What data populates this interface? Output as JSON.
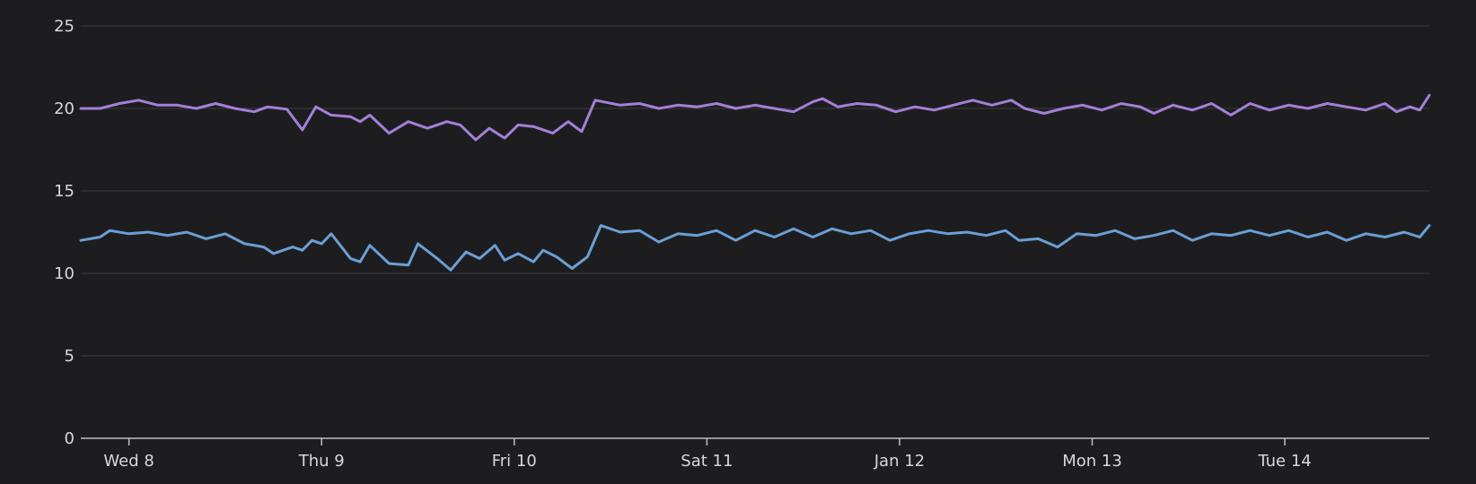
{
  "chart_data": {
    "type": "line",
    "title": "",
    "xlabel": "",
    "ylabel": "",
    "ylim": [
      0,
      25
    ],
    "yticks": [
      0,
      5,
      10,
      15,
      20,
      25
    ],
    "xlim": [
      -0.25,
      6.75
    ],
    "xticks": [
      {
        "value": 0,
        "label": "Wed 8"
      },
      {
        "value": 1,
        "label": "Thu 9"
      },
      {
        "value": 2,
        "label": "Fri 10"
      },
      {
        "value": 3,
        "label": "Sat 11"
      },
      {
        "value": 4,
        "label": "Jan 12"
      },
      {
        "value": 5,
        "label": "Mon 13"
      },
      {
        "value": 6,
        "label": "Tue 14"
      }
    ],
    "grid": true,
    "legend": "none",
    "series": [
      {
        "color": "#a57fd8",
        "points": [
          [
            -0.25,
            20.0
          ],
          [
            -0.15,
            20.0
          ],
          [
            -0.05,
            20.3
          ],
          [
            0.05,
            20.5
          ],
          [
            0.15,
            20.2
          ],
          [
            0.25,
            20.2
          ],
          [
            0.35,
            20.0
          ],
          [
            0.45,
            20.3
          ],
          [
            0.55,
            20.0
          ],
          [
            0.65,
            19.8
          ],
          [
            0.72,
            20.1
          ],
          [
            0.82,
            19.95
          ],
          [
            0.9,
            18.7
          ],
          [
            0.97,
            20.1
          ],
          [
            1.05,
            19.6
          ],
          [
            1.15,
            19.5
          ],
          [
            1.2,
            19.2
          ],
          [
            1.25,
            19.6
          ],
          [
            1.35,
            18.5
          ],
          [
            1.45,
            19.2
          ],
          [
            1.55,
            18.8
          ],
          [
            1.65,
            19.2
          ],
          [
            1.72,
            19.0
          ],
          [
            1.8,
            18.1
          ],
          [
            1.87,
            18.8
          ],
          [
            1.95,
            18.2
          ],
          [
            2.02,
            19.0
          ],
          [
            2.1,
            18.9
          ],
          [
            2.2,
            18.5
          ],
          [
            2.28,
            19.2
          ],
          [
            2.35,
            18.6
          ],
          [
            2.42,
            20.5
          ],
          [
            2.55,
            20.2
          ],
          [
            2.65,
            20.3
          ],
          [
            2.75,
            20.0
          ],
          [
            2.85,
            20.2
          ],
          [
            2.95,
            20.1
          ],
          [
            3.05,
            20.3
          ],
          [
            3.15,
            20.0
          ],
          [
            3.25,
            20.2
          ],
          [
            3.35,
            20.0
          ],
          [
            3.45,
            19.8
          ],
          [
            3.55,
            20.4
          ],
          [
            3.6,
            20.6
          ],
          [
            3.68,
            20.1
          ],
          [
            3.78,
            20.3
          ],
          [
            3.88,
            20.2
          ],
          [
            3.98,
            19.8
          ],
          [
            4.08,
            20.1
          ],
          [
            4.18,
            19.9
          ],
          [
            4.28,
            20.2
          ],
          [
            4.38,
            20.5
          ],
          [
            4.48,
            20.2
          ],
          [
            4.58,
            20.5
          ],
          [
            4.65,
            20.0
          ],
          [
            4.75,
            19.7
          ],
          [
            4.85,
            20.0
          ],
          [
            4.95,
            20.2
          ],
          [
            5.05,
            19.9
          ],
          [
            5.15,
            20.3
          ],
          [
            5.25,
            20.1
          ],
          [
            5.32,
            19.7
          ],
          [
            5.42,
            20.2
          ],
          [
            5.52,
            19.9
          ],
          [
            5.62,
            20.3
          ],
          [
            5.72,
            19.6
          ],
          [
            5.82,
            20.3
          ],
          [
            5.92,
            19.9
          ],
          [
            6.02,
            20.2
          ],
          [
            6.12,
            20.0
          ],
          [
            6.22,
            20.3
          ],
          [
            6.32,
            20.1
          ],
          [
            6.42,
            19.9
          ],
          [
            6.52,
            20.3
          ],
          [
            6.58,
            19.8
          ],
          [
            6.65,
            20.1
          ],
          [
            6.7,
            19.9
          ],
          [
            6.75,
            20.8
          ]
        ]
      },
      {
        "color": "#6b9fd4",
        "points": [
          [
            -0.25,
            12.0
          ],
          [
            -0.15,
            12.2
          ],
          [
            -0.1,
            12.6
          ],
          [
            0.0,
            12.4
          ],
          [
            0.1,
            12.5
          ],
          [
            0.2,
            12.3
          ],
          [
            0.3,
            12.5
          ],
          [
            0.4,
            12.1
          ],
          [
            0.5,
            12.4
          ],
          [
            0.6,
            11.8
          ],
          [
            0.7,
            11.6
          ],
          [
            0.75,
            11.2
          ],
          [
            0.85,
            11.6
          ],
          [
            0.9,
            11.4
          ],
          [
            0.95,
            12.0
          ],
          [
            1.0,
            11.8
          ],
          [
            1.05,
            12.4
          ],
          [
            1.15,
            10.9
          ],
          [
            1.2,
            10.7
          ],
          [
            1.25,
            11.7
          ],
          [
            1.35,
            10.6
          ],
          [
            1.45,
            10.5
          ],
          [
            1.5,
            11.8
          ],
          [
            1.6,
            10.9
          ],
          [
            1.67,
            10.2
          ],
          [
            1.75,
            11.3
          ],
          [
            1.82,
            10.9
          ],
          [
            1.9,
            11.7
          ],
          [
            1.95,
            10.8
          ],
          [
            2.02,
            11.2
          ],
          [
            2.1,
            10.7
          ],
          [
            2.15,
            11.4
          ],
          [
            2.22,
            11.0
          ],
          [
            2.3,
            10.3
          ],
          [
            2.38,
            11.0
          ],
          [
            2.45,
            12.9
          ],
          [
            2.55,
            12.5
          ],
          [
            2.65,
            12.6
          ],
          [
            2.75,
            11.9
          ],
          [
            2.85,
            12.4
          ],
          [
            2.95,
            12.3
          ],
          [
            3.05,
            12.6
          ],
          [
            3.15,
            12.0
          ],
          [
            3.25,
            12.6
          ],
          [
            3.35,
            12.2
          ],
          [
            3.45,
            12.7
          ],
          [
            3.55,
            12.2
          ],
          [
            3.65,
            12.7
          ],
          [
            3.75,
            12.4
          ],
          [
            3.85,
            12.6
          ],
          [
            3.95,
            12.0
          ],
          [
            4.05,
            12.4
          ],
          [
            4.15,
            12.6
          ],
          [
            4.25,
            12.4
          ],
          [
            4.35,
            12.5
          ],
          [
            4.45,
            12.3
          ],
          [
            4.55,
            12.6
          ],
          [
            4.62,
            12.0
          ],
          [
            4.72,
            12.1
          ],
          [
            4.82,
            11.6
          ],
          [
            4.92,
            12.4
          ],
          [
            5.02,
            12.3
          ],
          [
            5.12,
            12.6
          ],
          [
            5.22,
            12.1
          ],
          [
            5.32,
            12.3
          ],
          [
            5.42,
            12.6
          ],
          [
            5.52,
            12.0
          ],
          [
            5.62,
            12.4
          ],
          [
            5.72,
            12.3
          ],
          [
            5.82,
            12.6
          ],
          [
            5.92,
            12.3
          ],
          [
            6.02,
            12.6
          ],
          [
            6.12,
            12.2
          ],
          [
            6.22,
            12.5
          ],
          [
            6.32,
            12.0
          ],
          [
            6.42,
            12.4
          ],
          [
            6.52,
            12.2
          ],
          [
            6.62,
            12.5
          ],
          [
            6.7,
            12.2
          ],
          [
            6.75,
            12.9
          ]
        ]
      }
    ]
  }
}
